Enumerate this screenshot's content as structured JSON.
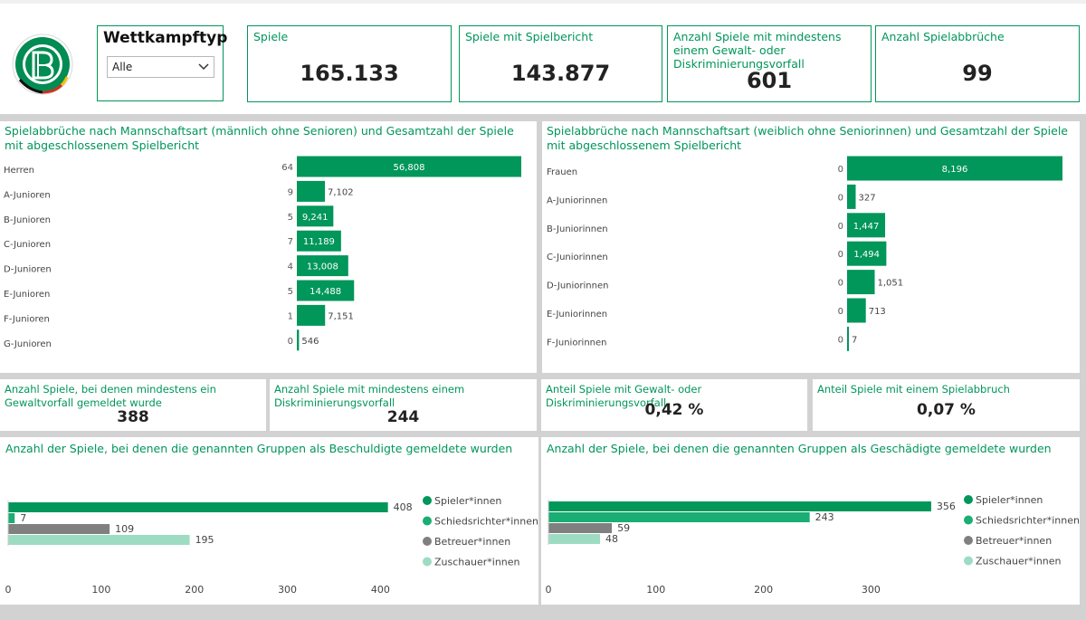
{
  "header": {
    "logo_name": "dfb-logo",
    "slicer": {
      "title": "Wettkampftyp",
      "selected": "Alle",
      "icon": "chevron-down-icon"
    },
    "cards": [
      {
        "title": "Spiele",
        "value": "165.133"
      },
      {
        "title": "Spiele mit Spielbericht",
        "value": "143.877"
      },
      {
        "title": "Anzahl Spiele mit mindestens einem Gewalt- oder Diskriminierungsvorfall",
        "value": "601"
      },
      {
        "title": "Anzahl Spielabbrüche",
        "value": "99"
      }
    ]
  },
  "kpis": [
    {
      "title": "Anzahl Spiele, bei denen mindestens ein Gewaltvorfall gemeldet wurde",
      "value": "388"
    },
    {
      "title": "Anzahl Spiele mit mindestens einem Diskriminierungsvorfall",
      "value": "244"
    },
    {
      "title": "Anteil Spiele mit Gewalt- oder Diskriminierungsvorfall",
      "value": "0,42 %"
    },
    {
      "title": "Anteil Spiele mit einem Spielabbruch",
      "value": "0,07 %"
    }
  ],
  "chart_data": [
    {
      "type": "bar",
      "orientation": "horizontal",
      "title": "Spielabbrüche nach Mannschaftsart (männlich ohne Senioren) und Gesamtzahl der Spiele mit abgeschlossenem Spielbericht",
      "categories": [
        "Herren",
        "A-Junioren",
        "B-Junioren",
        "C-Junioren",
        "D-Junioren",
        "E-Junioren",
        "F-Junioren",
        "G-Junioren"
      ],
      "abbrueche": [
        64,
        9,
        5,
        7,
        4,
        5,
        1,
        0
      ],
      "values": [
        56808,
        7102,
        9241,
        11189,
        13008,
        14488,
        7151,
        546
      ],
      "value_labels": [
        "56,808",
        "7,102",
        "9,241",
        "11,189",
        "13,008",
        "14,488",
        "7,151",
        "546"
      ],
      "xlim": [
        0,
        56808
      ],
      "color": "#01965a"
    },
    {
      "type": "bar",
      "orientation": "horizontal",
      "title": "Spielabbrüche nach Mannschaftsart (weiblich ohne Seniorinnen) und Gesamtzahl der Spiele mit abgeschlossenem Spielbericht",
      "categories": [
        "Frauen",
        "A-Juniorinnen",
        "B-Juniorinnen",
        "C-Juniorinnen",
        "D-Juniorinnen",
        "E-Juniorinnen",
        "F-Juniorinnen"
      ],
      "abbrueche": [
        0,
        0,
        0,
        0,
        0,
        0,
        0
      ],
      "values": [
        8196,
        327,
        1447,
        1494,
        1051,
        713,
        7
      ],
      "value_labels": [
        "8,196",
        "327",
        "1,447",
        "1,494",
        "1,051",
        "713",
        "7"
      ],
      "xlim": [
        0,
        8196
      ],
      "color": "#01965a"
    },
    {
      "type": "bar",
      "orientation": "horizontal",
      "title": "Anzahl der Spiele, bei denen die genannten Gruppen als Beschuldigte gemeldete wurden",
      "series": [
        {
          "name": "Spieler*innen",
          "value": 408,
          "color": "#01965a"
        },
        {
          "name": "Schiedsrichter*innen",
          "value": 7,
          "color": "#1aad74"
        },
        {
          "name": "Betreuer*innen",
          "value": 109,
          "color": "#808080"
        },
        {
          "name": "Zuschauer*innen",
          "value": 195,
          "color": "#9ddcc3"
        }
      ],
      "x_ticks": [
        0,
        100,
        200,
        300,
        400
      ],
      "xlim": [
        0,
        420
      ],
      "legend": "right"
    },
    {
      "type": "bar",
      "orientation": "horizontal",
      "title": "Anzahl der Spiele, bei denen die genannten Gruppen als Geschädigte gemeldete wurden",
      "series": [
        {
          "name": "Spieler*innen",
          "value": 356,
          "color": "#01965a"
        },
        {
          "name": "Schiedsrichter*innen",
          "value": 243,
          "color": "#1aad74"
        },
        {
          "name": "Betreuer*innen",
          "value": 59,
          "color": "#808080"
        },
        {
          "name": "Zuschauer*innen",
          "value": 48,
          "color": "#9ddcc3"
        }
      ],
      "x_ticks": [
        0,
        100,
        200,
        300
      ],
      "xlim": [
        0,
        367
      ],
      "legend": "right"
    }
  ]
}
